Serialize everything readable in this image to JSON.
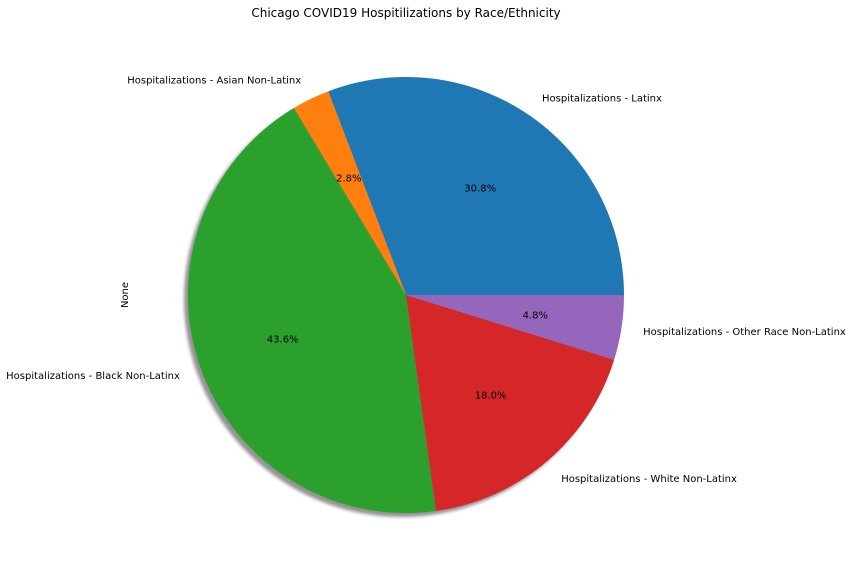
{
  "chart_data": {
    "type": "pie",
    "title": "Chicago COVID19 Hospitilizations by Race/Ethnicity",
    "ylabel": "None",
    "xlabel": "",
    "shadow": true,
    "start_angle_deg": 0,
    "direction": "counterclockwise",
    "slices": [
      {
        "label": "Hospitalizations - Latinx",
        "value": 30.8,
        "pct_label": "30.8%",
        "color": "#1f77b4"
      },
      {
        "label": "Hospitalizations - Asian Non-Latinx",
        "value": 2.8,
        "pct_label": "2.8%",
        "color": "#ff7f0e"
      },
      {
        "label": "Hospitalizations - Black Non-Latinx",
        "value": 43.6,
        "pct_label": "43.6%",
        "color": "#2ca02c"
      },
      {
        "label": "Hospitalizations - White Non-Latinx",
        "value": 18.0,
        "pct_label": "18.0%",
        "color": "#d62728"
      },
      {
        "label": "Hospitalizations - Other Race Non-Latinx",
        "value": 4.8,
        "pct_label": "4.8%",
        "color": "#9467bd"
      }
    ]
  }
}
